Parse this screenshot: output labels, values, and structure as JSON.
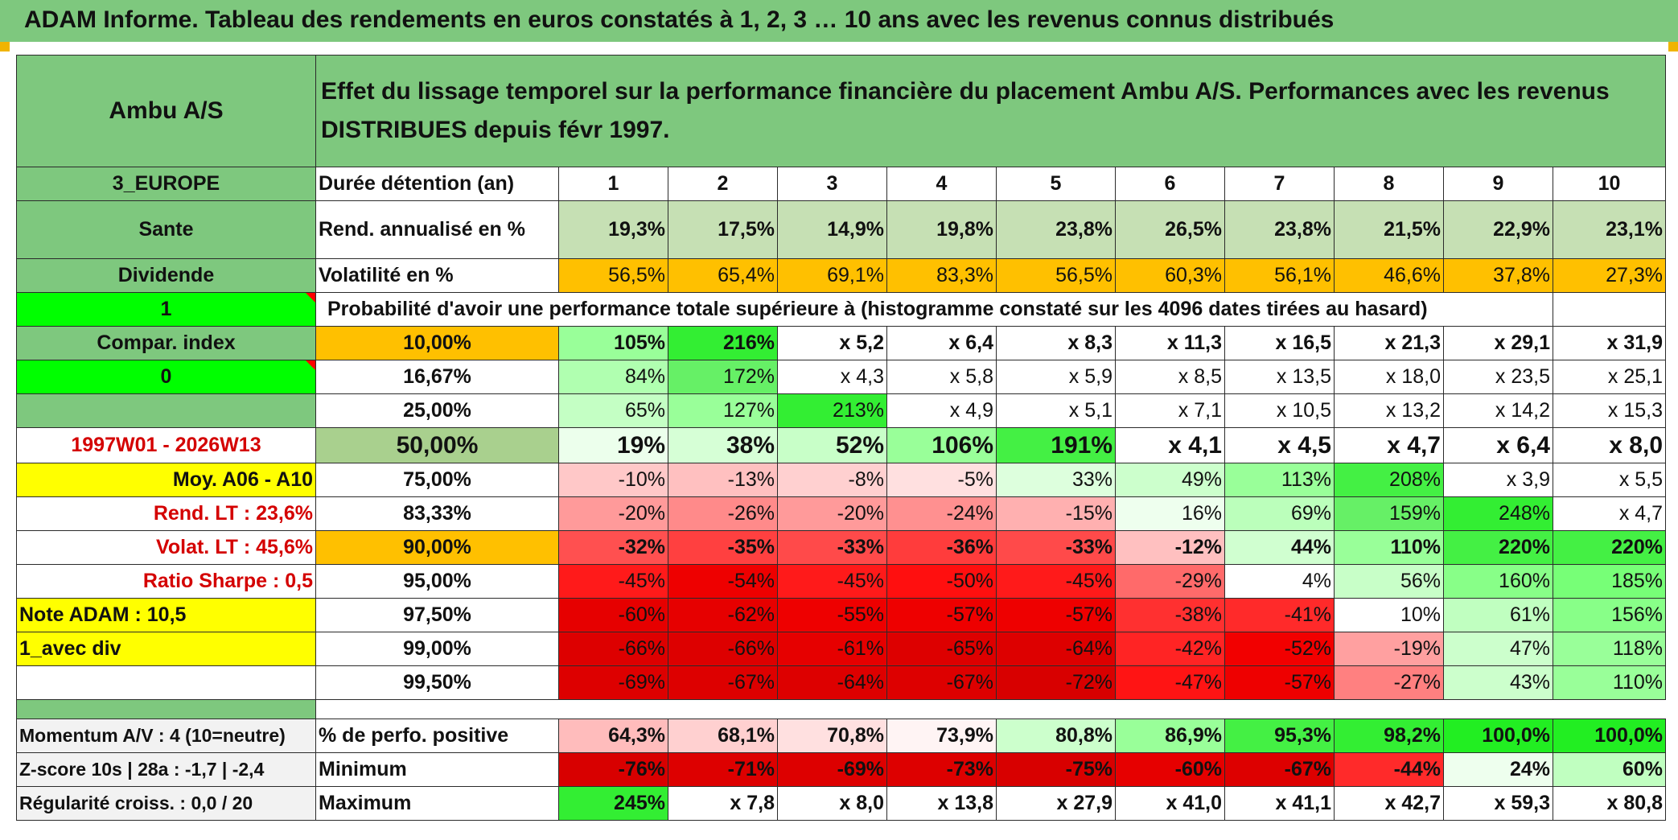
{
  "banner": {
    "title": "ADAM Informe. Tableau des rendements en euros constatés à 1, 2, 3 … 10 ans avec les revenus connus distribués"
  },
  "header": {
    "name": "Ambu A/S",
    "description": "Effet du lissage temporel sur la performance financière du placement Ambu A/S. Performances avec les revenus DISTRIBUES depuis févr 1997."
  },
  "sidebar": {
    "region": "3_EUROPE",
    "sector": "Sante",
    "mode": "Dividende",
    "param1": "1",
    "compar_label": "Compar. index",
    "compar_value": "0",
    "period": "1997W01 - 2026W13",
    "moy": "Moy. A06 - A10",
    "rend_lt": "Rend. LT :   23,6%",
    "volat_lt": "Volat. LT :   45,6%",
    "sharpe": "Ratio Sharpe :    0,5",
    "note": "Note ADAM : 10,5",
    "avec_div": "1_avec div"
  },
  "years_label": "Durée détention (an)",
  "years": [
    "1",
    "2",
    "3",
    "4",
    "5",
    "6",
    "7",
    "8",
    "9",
    "10"
  ],
  "rend_label": "Rend. annualisé en %",
  "rend_values": [
    "19,3%",
    "17,5%",
    "14,9%",
    "19,8%",
    "23,8%",
    "26,5%",
    "23,8%",
    "21,5%",
    "22,9%",
    "23,1%"
  ],
  "vol_label": "Volatilité en %",
  "vol_values": [
    "56,5%",
    "65,4%",
    "69,1%",
    "83,3%",
    "56,5%",
    "60,3%",
    "56,1%",
    "46,6%",
    "37,8%",
    "27,3%"
  ],
  "prob_title": "Probabilité d'avoir une performance totale supérieure à (histogramme constaté sur les 4096 dates tirées au hasard)",
  "prob_rows": [
    {
      "label": "10,00%",
      "values": [
        "105%",
        "216%",
        "x 5,2",
        "x 6,4",
        "x 8,3",
        "x 11,3",
        "x 16,5",
        "x 21,3",
        "x 29,1",
        "x 31,9"
      ],
      "colors": [
        "#99ff99",
        "#33ee33",
        "#ffffff",
        "#ffffff",
        "#ffffff",
        "#ffffff",
        "#ffffff",
        "#ffffff",
        "#ffffff",
        "#ffffff"
      ]
    },
    {
      "label": "16,67%",
      "values": [
        "84%",
        "172%",
        "x 4,3",
        "x 5,8",
        "x 5,9",
        "x 8,5",
        "x 13,5",
        "x 18,0",
        "x 23,5",
        "x 25,1"
      ],
      "colors": [
        "#b0ffb0",
        "#66f066",
        "#ffffff",
        "#ffffff",
        "#ffffff",
        "#ffffff",
        "#ffffff",
        "#ffffff",
        "#ffffff",
        "#ffffff"
      ]
    },
    {
      "label": "25,00%",
      "values": [
        "65%",
        "127%",
        "213%",
        "x 4,9",
        "x 5,1",
        "x 7,1",
        "x 10,5",
        "x 13,2",
        "x 14,2",
        "x 15,3"
      ],
      "colors": [
        "#c4ffc4",
        "#99ff99",
        "#33ee33",
        "#ffffff",
        "#ffffff",
        "#ffffff",
        "#ffffff",
        "#ffffff",
        "#ffffff",
        "#ffffff"
      ]
    },
    {
      "label": "50,00%",
      "values": [
        "19%",
        "38%",
        "52%",
        "106%",
        "191%",
        "x 4,1",
        "x 4,5",
        "x 4,7",
        "x 6,4",
        "x 8,0"
      ],
      "colors": [
        "#ecffec",
        "#d6ffd6",
        "#c8ffc8",
        "#99ff99",
        "#44f044",
        "#ffffff",
        "#ffffff",
        "#ffffff",
        "#ffffff",
        "#ffffff"
      ]
    },
    {
      "label": "75,00%",
      "values": [
        "-10%",
        "-13%",
        "-8%",
        "-5%",
        "33%",
        "49%",
        "113%",
        "208%",
        "x 3,9",
        "x 5,5"
      ],
      "colors": [
        "#ffc8c8",
        "#ffc0c0",
        "#ffd0d0",
        "#ffe0e0",
        "#ddffdd",
        "#ccffcc",
        "#99ff99",
        "#44f044",
        "#ffffff",
        "#ffffff"
      ]
    },
    {
      "label": "83,33%",
      "values": [
        "-20%",
        "-26%",
        "-20%",
        "-24%",
        "-15%",
        "16%",
        "69%",
        "159%",
        "248%",
        "x 4,7"
      ],
      "colors": [
        "#ff9a9a",
        "#ff8a8a",
        "#ff9a9a",
        "#ff9090",
        "#ffb0b0",
        "#eeffee",
        "#bbffbb",
        "#66f066",
        "#33ee33",
        "#ffffff"
      ]
    },
    {
      "label": "90,00%",
      "values": [
        "-32%",
        "-35%",
        "-33%",
        "-36%",
        "-33%",
        "-12%",
        "44%",
        "110%",
        "220%",
        "220%"
      ],
      "colors": [
        "#ff5050",
        "#ff4040",
        "#ff4a4a",
        "#ff3c3c",
        "#ff4a4a",
        "#ffc0c0",
        "#d0ffd0",
        "#99ff99",
        "#44f044",
        "#44f044"
      ]
    },
    {
      "label": "95,00%",
      "values": [
        "-45%",
        "-54%",
        "-45%",
        "-50%",
        "-45%",
        "-29%",
        "4%",
        "56%",
        "160%",
        "185%"
      ],
      "colors": [
        "#ff1a1a",
        "#ee0000",
        "#ff1a1a",
        "#ff0f0f",
        "#ff1a1a",
        "#ff6a6a",
        "#ffffff",
        "#c8ffc8",
        "#88ff88",
        "#77ff77"
      ]
    },
    {
      "label": "97,50%",
      "values": [
        "-60%",
        "-62%",
        "-55%",
        "-57%",
        "-57%",
        "-38%",
        "-41%",
        "10%",
        "61%",
        "156%"
      ],
      "colors": [
        "#e60000",
        "#e60000",
        "#ee0000",
        "#ee0000",
        "#ee0000",
        "#ff3030",
        "#ff2a2a",
        "#ffffff",
        "#c0ffc0",
        "#88ff88"
      ]
    },
    {
      "label": "99,00%",
      "values": [
        "-66%",
        "-66%",
        "-61%",
        "-65%",
        "-64%",
        "-42%",
        "-52%",
        "-19%",
        "47%",
        "118%"
      ],
      "colors": [
        "#dd0000",
        "#dd0000",
        "#e60000",
        "#dd0000",
        "#dd0000",
        "#ff2424",
        "#f20000",
        "#ffa0a0",
        "#ccffcc",
        "#99ff99"
      ]
    },
    {
      "label": "99,50%",
      "values": [
        "-69%",
        "-67%",
        "-64%",
        "-67%",
        "-72%",
        "-47%",
        "-57%",
        "-27%",
        "43%",
        "110%"
      ],
      "colors": [
        "#dd0000",
        "#dd0000",
        "#dd0000",
        "#dd0000",
        "#d80000",
        "#ff1414",
        "#ee0000",
        "#ff8080",
        "#ccffcc",
        "#99ff99"
      ]
    }
  ],
  "bottom": {
    "momentum": "Momentum A/V : 4 (10=neutre)",
    "zscore": "Z-score 10s | 28a : -1,7 | -2,4",
    "regularite": "Régularité croiss. : 0,0 / 20",
    "pos_label": "% de perfo. positive",
    "pos_values": [
      "64,3%",
      "68,1%",
      "70,8%",
      "73,9%",
      "80,8%",
      "86,9%",
      "95,3%",
      "98,2%",
      "100,0%",
      "100,0%"
    ],
    "pos_colors": [
      "#ffbcbc",
      "#ffd0d0",
      "#ffe0e0",
      "#fff4f4",
      "#ccffcc",
      "#99ff99",
      "#44f044",
      "#33ee33",
      "#22ee22",
      "#22ee22"
    ],
    "min_label": "Minimum",
    "min_values": [
      "-76%",
      "-71%",
      "-69%",
      "-73%",
      "-75%",
      "-60%",
      "-67%",
      "-44%",
      "24%",
      "60%"
    ],
    "min_colors": [
      "#d80000",
      "#dd0000",
      "#dd0000",
      "#dd0000",
      "#d80000",
      "#e60000",
      "#dd0000",
      "#ff2a2a",
      "#eeffee",
      "#c0ffc0"
    ],
    "max_label": "Maximum",
    "max_values": [
      "245%",
      "x 7,8",
      "x 8,0",
      "x 13,8",
      "x 27,9",
      "x 41,0",
      "x 41,1",
      "x 42,7",
      "x 59,3",
      "x 80,8"
    ],
    "max_colors": [
      "#33ee33",
      "#ffffff",
      "#ffffff",
      "#ffffff",
      "#ffffff",
      "#ffffff",
      "#ffffff",
      "#ffffff",
      "#ffffff",
      "#ffffff"
    ]
  }
}
